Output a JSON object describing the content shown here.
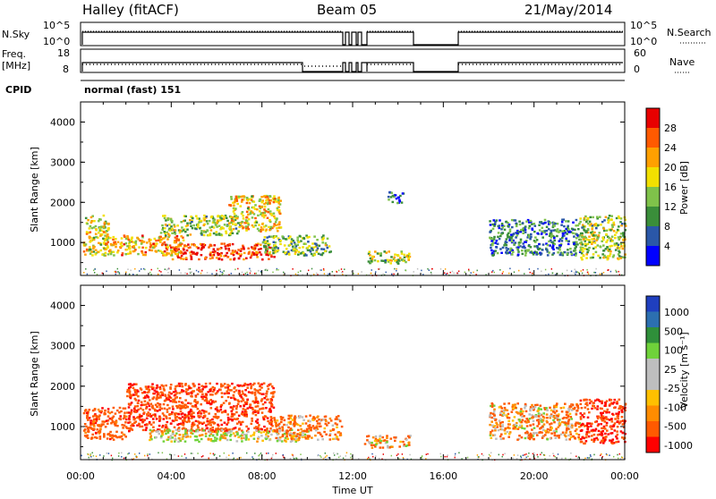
{
  "header": {
    "station": "Halley (fitACF)",
    "beam": "Beam 05",
    "date": "21/May/2014"
  },
  "top_panels": {
    "nsky_label": "N.Sky",
    "nsky_ticks": [
      "10^5",
      "10^0"
    ],
    "nsearch_label": "N.Search",
    "nsearch_ticks": [
      "10^5",
      "10^0"
    ],
    "freq_label": "Freq.",
    "freq_unit": "[MHz]",
    "freq_ticks": [
      "18",
      "8"
    ],
    "nave_label": "Nave",
    "nave_ticks": [
      "60",
      "0"
    ],
    "cpid_label": "CPID",
    "cpid_value": "normal (fast) 151"
  },
  "colors": {
    "power_scale": [
      "#0000ff",
      "#2a57a8",
      "#3a8e3a",
      "#7fc24a",
      "#f2e000",
      "#ffa000",
      "#ff5a00",
      "#e80000"
    ],
    "velocity_scale": [
      "#ff0000",
      "#ff5a00",
      "#ff8c00",
      "#ffc000",
      "#bebebe",
      "#bebebe",
      "#6fd23a",
      "#2f8f3a",
      "#2c6fb0",
      "#1f3fbf"
    ]
  },
  "chart_data": [
    {
      "type": "heatmap",
      "name": "power",
      "ylabel": "Slant Range [km]",
      "yticks": [
        "1000",
        "2000",
        "3000",
        "4000"
      ],
      "ylim": [
        180,
        4500
      ],
      "xlim": [
        0,
        24
      ],
      "colorbar": {
        "label": "Power [dB]",
        "ticks": [
          "4",
          "8",
          "12",
          "16",
          "20",
          "24",
          "28"
        ],
        "range": [
          0,
          30
        ]
      },
      "echo_regions": [
        {
          "t0": 0.1,
          "t1": 1.2,
          "r0": 700,
          "r1": 1700,
          "value": 16
        },
        {
          "t0": 1.0,
          "t1": 4.5,
          "r0": 700,
          "r1": 1200,
          "value": 20
        },
        {
          "t0": 4.0,
          "t1": 8.5,
          "r0": 600,
          "r1": 1000,
          "value": 26
        },
        {
          "t0": 3.5,
          "t1": 7.0,
          "r0": 1200,
          "r1": 1700,
          "value": 14
        },
        {
          "t0": 6.5,
          "t1": 8.8,
          "r0": 1300,
          "r1": 2200,
          "value": 18
        },
        {
          "t0": 8.0,
          "t1": 11.0,
          "r0": 700,
          "r1": 1200,
          "value": 12
        },
        {
          "t0": 12.5,
          "t1": 14.5,
          "r0": 500,
          "r1": 800,
          "value": 14
        },
        {
          "t0": 13.5,
          "t1": 14.2,
          "r0": 2000,
          "r1": 2300,
          "value": 6
        },
        {
          "t0": 18.0,
          "t1": 22.0,
          "r0": 700,
          "r1": 1600,
          "value": 8
        },
        {
          "t0": 22.0,
          "t1": 24.0,
          "r0": 600,
          "r1": 1700,
          "value": 14
        }
      ]
    },
    {
      "type": "heatmap",
      "name": "velocity",
      "ylabel": "Slant Range [km]",
      "yticks": [
        "1000",
        "2000",
        "3000",
        "4000"
      ],
      "ylim": [
        180,
        4500
      ],
      "xlim": [
        0,
        24
      ],
      "xlabel": "Time UT",
      "xticks": [
        "00:00",
        "04:00",
        "08:00",
        "12:00",
        "16:00",
        "20:00",
        "00:00"
      ],
      "colorbar": {
        "label": "Velocity [m s⁻¹]",
        "ticks": [
          "1000",
          "500",
          "100",
          "25",
          "-25",
          "-100",
          "-500",
          "-1000"
        ],
        "range": [
          -1000,
          1000
        ]
      },
      "echo_regions": [
        {
          "t0": 0.1,
          "t1": 2.0,
          "r0": 700,
          "r1": 1500,
          "value": -300
        },
        {
          "t0": 2.0,
          "t1": 8.5,
          "r0": 900,
          "r1": 2100,
          "value": -400
        },
        {
          "t0": 3.0,
          "t1": 10.0,
          "r0": 650,
          "r1": 950,
          "value": 0
        },
        {
          "t0": 8.5,
          "t1": 11.5,
          "r0": 700,
          "r1": 1300,
          "value": -150
        },
        {
          "t0": 12.5,
          "t1": 14.5,
          "r0": 500,
          "r1": 800,
          "value": -100
        },
        {
          "t0": 18.0,
          "t1": 22.0,
          "r0": 700,
          "r1": 1600,
          "value": -80
        },
        {
          "t0": 22.0,
          "t1": 24.0,
          "r0": 600,
          "r1": 1700,
          "value": -500
        }
      ]
    }
  ]
}
